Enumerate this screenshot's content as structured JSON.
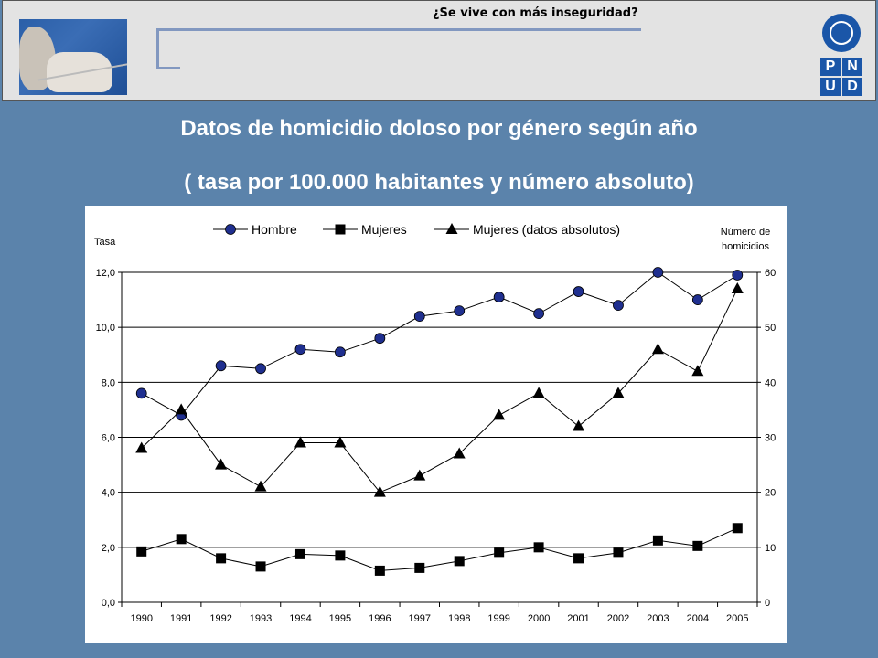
{
  "header": {
    "subtitle": "¿Se vive con más inseguridad?"
  },
  "logo": {
    "letters": [
      "P",
      "N",
      "U",
      "D"
    ]
  },
  "title_line1": "Datos de homicidio doloso por género según año",
  "title_line2": "( tasa por 100.000 habitantes y número absoluto)",
  "colors": {
    "background": "#5b83ab",
    "hombre": "#1f2f8f",
    "mujeres": "#000000"
  },
  "chart_data": {
    "type": "line",
    "categories": [
      "1990",
      "1991",
      "1992",
      "1993",
      "1994",
      "1995",
      "1996",
      "1997",
      "1998",
      "1999",
      "2000",
      "2001",
      "2002",
      "2003",
      "2004",
      "2005"
    ],
    "y_left_label": "Tasa",
    "y_right_label": [
      "Número de",
      "homicidios"
    ],
    "y_left_ticks": [
      "0,0",
      "2,0",
      "4,0",
      "6,0",
      "8,0",
      "10,0",
      "12,0"
    ],
    "y_right_ticks": [
      "0",
      "10",
      "20",
      "30",
      "40",
      "50",
      "60"
    ],
    "ylim_left": [
      0,
      12
    ],
    "ylim_right": [
      0,
      60
    ],
    "grid": true,
    "legend_position": "top",
    "series": [
      {
        "name": "Hombre",
        "axis": "left",
        "marker": "circle",
        "values": [
          7.6,
          6.8,
          8.6,
          8.5,
          9.2,
          9.1,
          9.6,
          10.4,
          10.6,
          11.1,
          10.5,
          11.3,
          10.8,
          12.0,
          11.0,
          11.9
        ]
      },
      {
        "name": "Mujeres",
        "axis": "left",
        "marker": "square",
        "values": [
          1.85,
          2.3,
          1.6,
          1.3,
          1.75,
          1.7,
          1.15,
          1.25,
          1.5,
          1.8,
          2.0,
          1.6,
          1.8,
          2.25,
          2.05,
          2.7
        ]
      },
      {
        "name": "Mujeres (datos absolutos)",
        "axis": "right",
        "marker": "triangle",
        "values": [
          28,
          35,
          25,
          21,
          29,
          29,
          20,
          23,
          27,
          34,
          38,
          32,
          38,
          46,
          42,
          57
        ]
      }
    ]
  }
}
